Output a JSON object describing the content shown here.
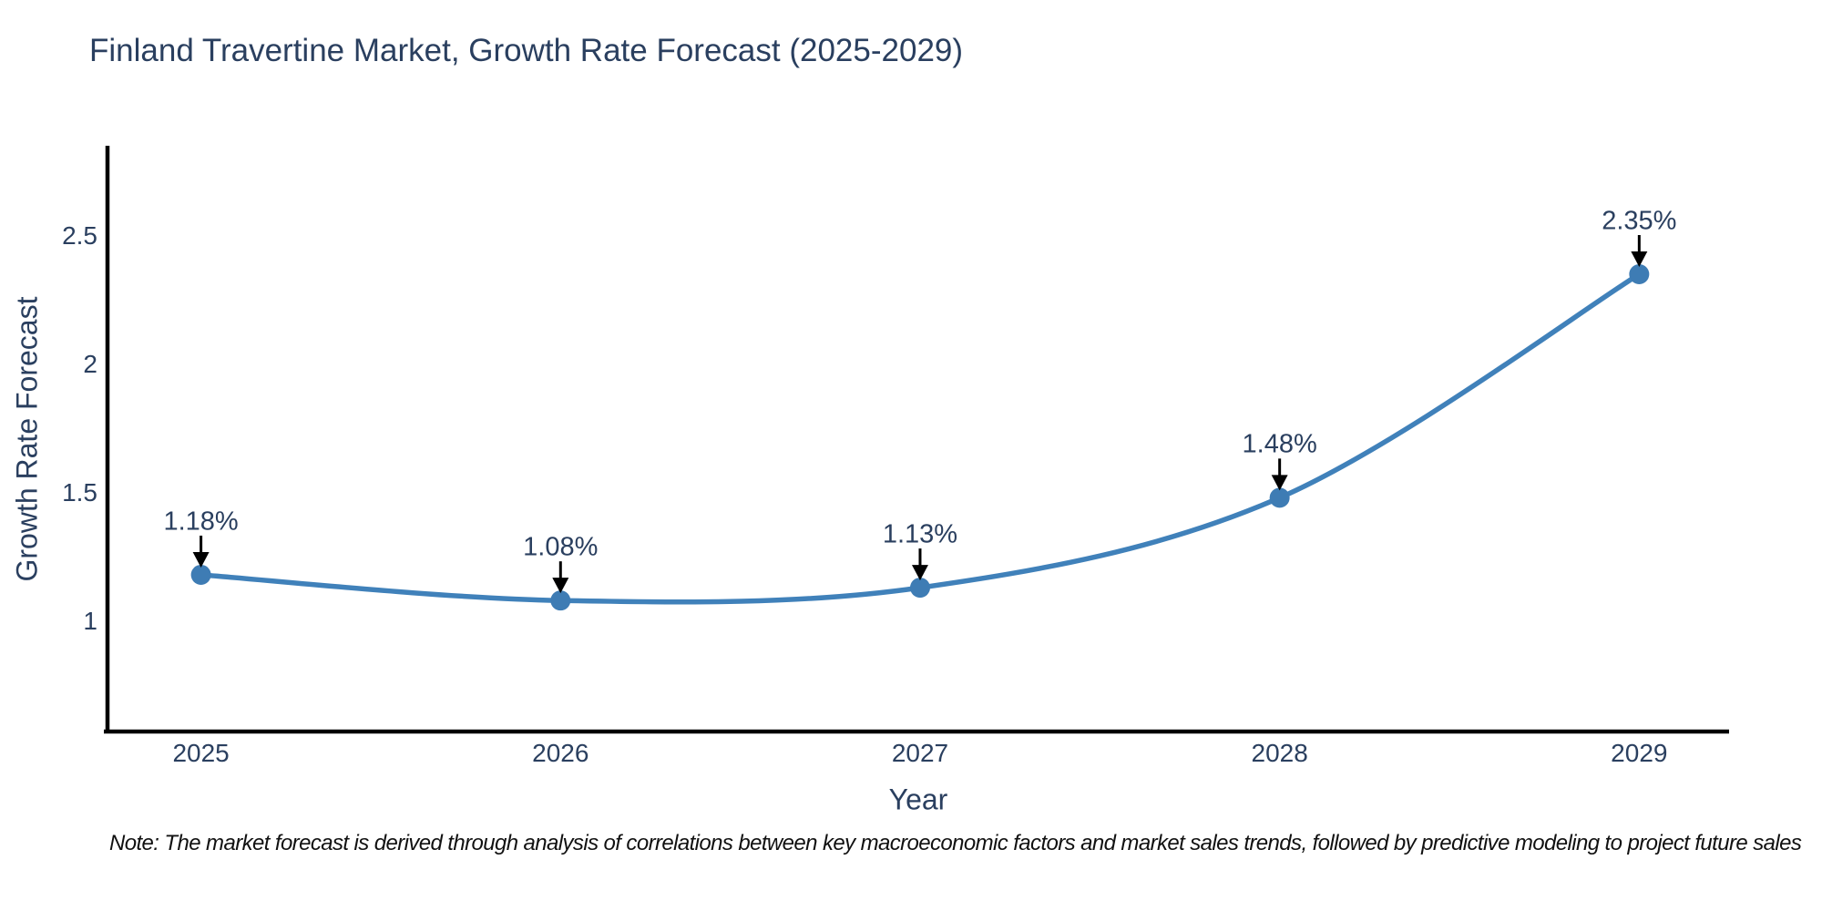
{
  "title": "Finland Travertine Market, Growth Rate Forecast (2025-2029)",
  "note": "Note: The market forecast is derived through analysis of correlations between key macroeconomic factors and market sales trends, followed by predictive modeling to project future sales",
  "chart_data": {
    "type": "line",
    "title": "Finland Travertine Market, Growth Rate Forecast (2025-2029)",
    "xlabel": "Year",
    "ylabel": "Growth Rate Forecast",
    "x": [
      2025,
      2026,
      2027,
      2028,
      2029
    ],
    "values": [
      1.18,
      1.08,
      1.13,
      1.48,
      2.35
    ],
    "point_labels": [
      "1.18%",
      "1.08%",
      "1.13%",
      "1.48%",
      "2.35%"
    ],
    "xtick_labels": [
      "2025",
      "2026",
      "2027",
      "2028",
      "2029"
    ],
    "yticks": [
      1,
      1.5,
      2,
      2.5
    ],
    "ytick_labels": [
      "1",
      "1.5",
      "2",
      "2.5"
    ],
    "xlim": [
      2024.74,
      2029.25
    ],
    "ylim": [
      0.57,
      2.85
    ],
    "grid": false,
    "legend": false,
    "smooth_spline": true,
    "line_color": "#4081BA",
    "marker_color": "#3E7CB4",
    "axis_color": "#000000",
    "text_color": "#2a3f5f",
    "annotation_arrow_color": "#000000"
  }
}
